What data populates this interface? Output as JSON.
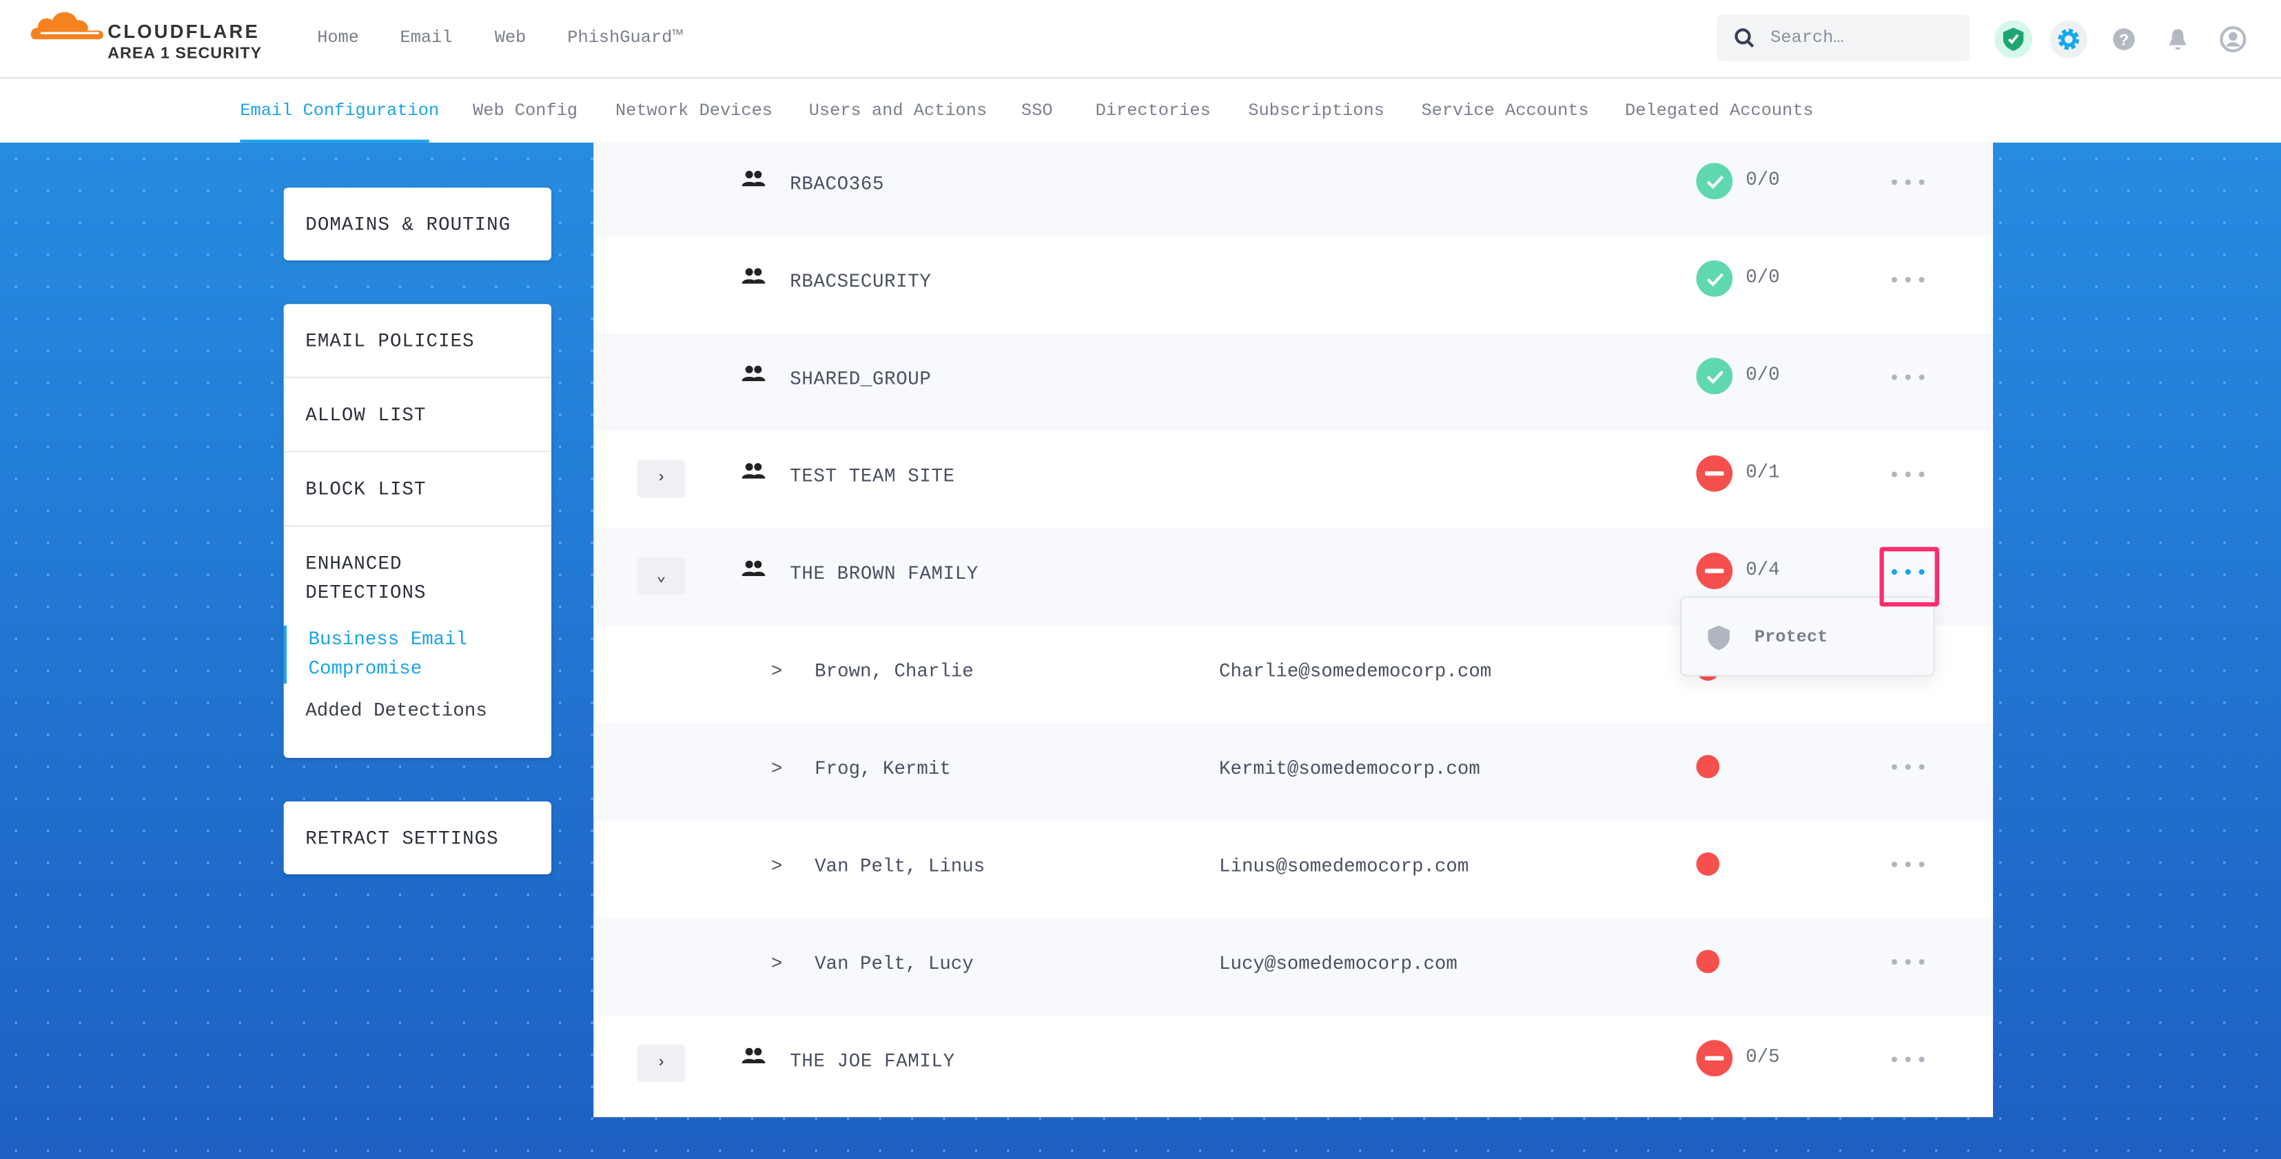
{
  "header": {
    "logo_brand": "CLOUDFLARE",
    "logo_sub": "AREA 1 SECURITY",
    "nav": [
      "Home",
      "Email",
      "Web",
      "PhishGuard™"
    ],
    "search_placeholder": "Search…",
    "icons": [
      "shield-check-icon",
      "gear-icon",
      "help-icon",
      "bell-icon",
      "user-icon"
    ]
  },
  "tabs": {
    "items": [
      "Email Configuration",
      "Web Config",
      "Network Devices",
      "Users and Actions",
      "SSO",
      "Directories",
      "Subscriptions",
      "Service Accounts",
      "Delegated Accounts"
    ],
    "active": "Email Configuration"
  },
  "sidebar": {
    "card1": [
      "DOMAINS & ROUTING"
    ],
    "card2": [
      "EMAIL POLICIES",
      "ALLOW LIST",
      "BLOCK LIST"
    ],
    "enhanced": "ENHANCED DETECTIONS",
    "enhanced_sub": [
      "Business Email Compromise",
      "Added Detections"
    ],
    "card3": [
      "RETRACT SETTINGS"
    ]
  },
  "colors": {
    "accent": "#1aa4e6",
    "ok": "#5fd8b0",
    "bad": "#f5504e",
    "highlight": "#ff2d6f"
  },
  "groups": [
    {
      "name": "RBACO365",
      "status": "ok",
      "count": "0/0",
      "expandable": false
    },
    {
      "name": "RBACSECURITY",
      "status": "ok",
      "count": "0/0",
      "expandable": false
    },
    {
      "name": "SHARED_GROUP",
      "status": "ok",
      "count": "0/0",
      "expandable": false
    },
    {
      "name": "TEST TEAM SITE",
      "status": "bad",
      "count": "0/1",
      "expandable": true,
      "expanded": false
    },
    {
      "name": "THE BROWN FAMILY",
      "status": "bad",
      "count": "0/4",
      "expandable": true,
      "expanded": true
    },
    {
      "name": "THE JOE FAMILY",
      "status": "bad",
      "count": "0/5",
      "expandable": true,
      "expanded": false
    }
  ],
  "members": [
    {
      "name": "Brown, Charlie",
      "email": "Charlie@somedemocorp.com"
    },
    {
      "name": "Frog, Kermit",
      "email": "Kermit@somedemocorp.com"
    },
    {
      "name": "Van Pelt, Linus",
      "email": "Linus@somedemocorp.com"
    },
    {
      "name": "Van Pelt, Lucy",
      "email": "Lucy@somedemocorp.com"
    }
  ],
  "menu": {
    "items": [
      "Protect"
    ]
  },
  "glyphs": {
    "collapsed": "›",
    "expanded": "⌄",
    "member_chevron": ">",
    "more": "•••"
  }
}
